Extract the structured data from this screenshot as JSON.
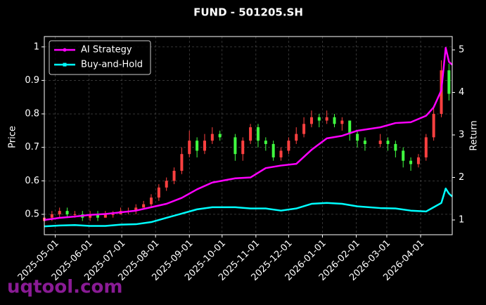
{
  "chart_data": {
    "type": "candlestick",
    "title": "FUND - 501205.SH",
    "y_label": "Price",
    "y2_label": "Return",
    "watermark": "uqtool.com",
    "ylim": [
      0.439,
      1.031
    ],
    "yticks": [
      0.5,
      0.6,
      0.7,
      0.8,
      0.9,
      1.0
    ],
    "y2lim": [
      0.653,
      5.314
    ],
    "y2ticks": [
      1,
      2,
      3,
      4,
      5
    ],
    "xlim": [
      "2025-04-21",
      "2026-04-30"
    ],
    "xticks": [
      "2025-05-01",
      "2025-06-01",
      "2025-07-01",
      "2025-08-01",
      "2025-09-01",
      "2025-10-01",
      "2025-11-01",
      "2025-12-01",
      "2026-01-01",
      "2026-02-01",
      "2026-03-01",
      "2026-04-01"
    ],
    "grid": true,
    "legend": "upper left",
    "up_color": "#ff4040",
    "down_color": "#40ff40",
    "candles": {
      "x": [
        "2025-04-21",
        "2025-04-28",
        "2025-05-05",
        "2025-05-12",
        "2025-05-19",
        "2025-05-26",
        "2025-06-02",
        "2025-06-09",
        "2025-06-16",
        "2025-06-23",
        "2025-06-30",
        "2025-07-07",
        "2025-07-14",
        "2025-07-21",
        "2025-07-28",
        "2025-08-04",
        "2025-08-11",
        "2025-08-18",
        "2025-08-25",
        "2025-09-01",
        "2025-09-08",
        "2025-09-15",
        "2025-09-22",
        "2025-09-29",
        "2025-10-13",
        "2025-10-20",
        "2025-10-27",
        "2025-11-03",
        "2025-11-10",
        "2025-11-17",
        "2025-11-24",
        "2025-12-01",
        "2025-12-08",
        "2025-12-15",
        "2025-12-22",
        "2025-12-29",
        "2026-01-05",
        "2026-01-12",
        "2026-01-19",
        "2026-01-26",
        "2026-02-02",
        "2026-02-09",
        "2026-02-23",
        "2026-03-02",
        "2026-03-09",
        "2026-03-16",
        "2026-03-23",
        "2026-03-30",
        "2026-04-06",
        "2026-04-13",
        "2026-04-20",
        "2026-04-27"
      ],
      "open": [
        0.48,
        0.49,
        0.5,
        0.51,
        0.5,
        0.5,
        0.49,
        0.5,
        0.49,
        0.5,
        0.5,
        0.51,
        0.51,
        0.52,
        0.53,
        0.55,
        0.58,
        0.6,
        0.63,
        0.68,
        0.72,
        0.69,
        0.72,
        0.74,
        0.73,
        0.68,
        0.72,
        0.76,
        0.72,
        0.71,
        0.67,
        0.69,
        0.72,
        0.74,
        0.77,
        0.79,
        0.78,
        0.79,
        0.77,
        0.78,
        0.74,
        0.72,
        0.71,
        0.72,
        0.71,
        0.69,
        0.66,
        0.65,
        0.67,
        0.73,
        0.8,
        0.93
      ],
      "high": [
        0.5,
        0.51,
        0.52,
        0.52,
        0.51,
        0.51,
        0.51,
        0.51,
        0.51,
        0.51,
        0.52,
        0.52,
        0.53,
        0.54,
        0.56,
        0.59,
        0.61,
        0.64,
        0.7,
        0.75,
        0.73,
        0.74,
        0.76,
        0.75,
        0.74,
        0.73,
        0.77,
        0.77,
        0.73,
        0.72,
        0.7,
        0.73,
        0.76,
        0.79,
        0.81,
        0.8,
        0.81,
        0.8,
        0.79,
        0.78,
        0.75,
        0.73,
        0.74,
        0.73,
        0.72,
        0.7,
        0.67,
        0.68,
        0.74,
        0.82,
        0.96,
        0.95
      ],
      "low": [
        0.47,
        0.48,
        0.49,
        0.49,
        0.49,
        0.48,
        0.48,
        0.48,
        0.49,
        0.49,
        0.5,
        0.5,
        0.5,
        0.52,
        0.52,
        0.54,
        0.57,
        0.59,
        0.62,
        0.67,
        0.67,
        0.68,
        0.71,
        0.72,
        0.66,
        0.66,
        0.71,
        0.7,
        0.69,
        0.66,
        0.66,
        0.68,
        0.71,
        0.73,
        0.76,
        0.76,
        0.77,
        0.76,
        0.75,
        0.72,
        0.7,
        0.69,
        0.7,
        0.69,
        0.67,
        0.64,
        0.63,
        0.64,
        0.66,
        0.72,
        0.79,
        0.84
      ],
      "close": [
        0.49,
        0.5,
        0.51,
        0.5,
        0.5,
        0.49,
        0.5,
        0.49,
        0.5,
        0.5,
        0.51,
        0.51,
        0.52,
        0.53,
        0.55,
        0.58,
        0.6,
        0.63,
        0.68,
        0.72,
        0.69,
        0.72,
        0.74,
        0.73,
        0.68,
        0.72,
        0.76,
        0.72,
        0.71,
        0.67,
        0.69,
        0.72,
        0.74,
        0.77,
        0.79,
        0.78,
        0.79,
        0.77,
        0.78,
        0.74,
        0.72,
        0.71,
        0.72,
        0.71,
        0.69,
        0.66,
        0.65,
        0.67,
        0.73,
        0.8,
        0.93,
        0.86
      ]
    },
    "line_x": [
      "2025-04-21",
      "2025-05-05",
      "2025-05-19",
      "2025-06-02",
      "2025-06-16",
      "2025-06-30",
      "2025-07-14",
      "2025-07-28",
      "2025-08-11",
      "2025-08-25",
      "2025-09-08",
      "2025-09-22",
      "2025-10-13",
      "2025-10-27",
      "2025-11-10",
      "2025-11-24",
      "2025-12-08",
      "2025-12-22",
      "2026-01-05",
      "2026-01-19",
      "2026-02-02",
      "2026-02-23",
      "2026-03-09",
      "2026-03-23",
      "2026-04-06",
      "2026-04-13",
      "2026-04-20",
      "2026-04-24",
      "2026-04-27",
      "2026-04-30"
    ],
    "series": [
      {
        "name": "AI Strategy",
        "color": "#ff00ff",
        "marker": "circle",
        "axis": "y2",
        "values": [
          1.0,
          1.05,
          1.08,
          1.12,
          1.14,
          1.18,
          1.22,
          1.3,
          1.38,
          1.52,
          1.72,
          1.88,
          1.98,
          2.0,
          2.22,
          2.28,
          2.32,
          2.65,
          2.92,
          2.98,
          3.1,
          3.18,
          3.28,
          3.3,
          3.45,
          3.65,
          4.05,
          5.05,
          4.72,
          4.65
        ]
      },
      {
        "name": "Buy-and-Hold",
        "color": "#00ffff",
        "marker": "square",
        "axis": "y2",
        "values": [
          0.85,
          0.87,
          0.88,
          0.86,
          0.86,
          0.89,
          0.9,
          0.95,
          1.05,
          1.15,
          1.25,
          1.3,
          1.3,
          1.27,
          1.27,
          1.22,
          1.27,
          1.38,
          1.4,
          1.38,
          1.32,
          1.28,
          1.27,
          1.22,
          1.2,
          1.3,
          1.4,
          1.74,
          1.62,
          1.55
        ]
      }
    ]
  }
}
